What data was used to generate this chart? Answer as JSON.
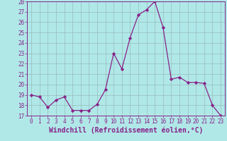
{
  "x": [
    0,
    1,
    2,
    3,
    4,
    5,
    6,
    7,
    8,
    9,
    10,
    11,
    12,
    13,
    14,
    15,
    16,
    17,
    18,
    19,
    20,
    21,
    22,
    23
  ],
  "y": [
    19.0,
    18.8,
    17.8,
    18.5,
    18.8,
    17.5,
    17.5,
    17.5,
    18.1,
    19.5,
    23.0,
    21.5,
    24.5,
    26.7,
    27.2,
    28.0,
    25.5,
    20.5,
    20.7,
    20.2,
    20.2,
    20.1,
    18.0,
    17.0
  ],
  "line_color": "#882288",
  "marker": "D",
  "marker_size": 2.2,
  "bg_color": "#b0e8e8",
  "grid_color": "#99bbbb",
  "xlabel": "Windchill (Refroidissement éolien,°C)",
  "ylim": [
    17,
    28
  ],
  "xlim": [
    -0.5,
    23.5
  ],
  "yticks": [
    17,
    18,
    19,
    20,
    21,
    22,
    23,
    24,
    25,
    26,
    27,
    28
  ],
  "xticks": [
    0,
    1,
    2,
    3,
    4,
    5,
    6,
    7,
    8,
    9,
    10,
    11,
    12,
    13,
    14,
    15,
    16,
    17,
    18,
    19,
    20,
    21,
    22,
    23
  ],
  "tick_label_fontsize": 5.5,
  "xlabel_fontsize": 7.0,
  "line_width": 0.9
}
